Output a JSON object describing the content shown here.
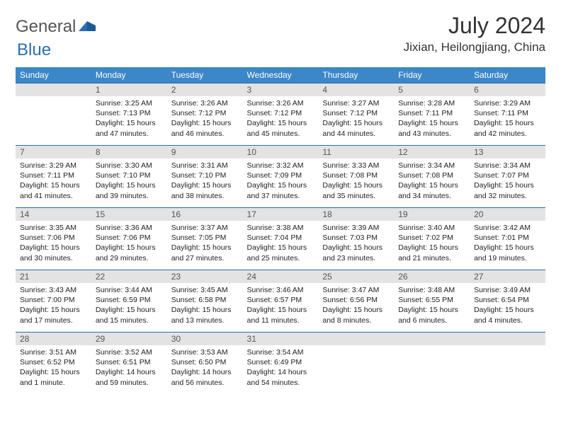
{
  "logo": {
    "general": "General",
    "blue": "Blue"
  },
  "title": "July 2024",
  "location": "Jixian, Heilongjiang, China",
  "colors": {
    "header_bg": "#3b87c8",
    "border": "#2a6db5",
    "daynum_bg": "#e3e3e3",
    "logo_blue": "#2a6db5"
  },
  "weekdays": [
    "Sunday",
    "Monday",
    "Tuesday",
    "Wednesday",
    "Thursday",
    "Friday",
    "Saturday"
  ],
  "weeks": [
    [
      null,
      {
        "n": "1",
        "sr": "3:25 AM",
        "ss": "7:13 PM",
        "dl": "15 hours and 47 minutes."
      },
      {
        "n": "2",
        "sr": "3:26 AM",
        "ss": "7:12 PM",
        "dl": "15 hours and 46 minutes."
      },
      {
        "n": "3",
        "sr": "3:26 AM",
        "ss": "7:12 PM",
        "dl": "15 hours and 45 minutes."
      },
      {
        "n": "4",
        "sr": "3:27 AM",
        "ss": "7:12 PM",
        "dl": "15 hours and 44 minutes."
      },
      {
        "n": "5",
        "sr": "3:28 AM",
        "ss": "7:11 PM",
        "dl": "15 hours and 43 minutes."
      },
      {
        "n": "6",
        "sr": "3:29 AM",
        "ss": "7:11 PM",
        "dl": "15 hours and 42 minutes."
      }
    ],
    [
      {
        "n": "7",
        "sr": "3:29 AM",
        "ss": "7:11 PM",
        "dl": "15 hours and 41 minutes."
      },
      {
        "n": "8",
        "sr": "3:30 AM",
        "ss": "7:10 PM",
        "dl": "15 hours and 39 minutes."
      },
      {
        "n": "9",
        "sr": "3:31 AM",
        "ss": "7:10 PM",
        "dl": "15 hours and 38 minutes."
      },
      {
        "n": "10",
        "sr": "3:32 AM",
        "ss": "7:09 PM",
        "dl": "15 hours and 37 minutes."
      },
      {
        "n": "11",
        "sr": "3:33 AM",
        "ss": "7:08 PM",
        "dl": "15 hours and 35 minutes."
      },
      {
        "n": "12",
        "sr": "3:34 AM",
        "ss": "7:08 PM",
        "dl": "15 hours and 34 minutes."
      },
      {
        "n": "13",
        "sr": "3:34 AM",
        "ss": "7:07 PM",
        "dl": "15 hours and 32 minutes."
      }
    ],
    [
      {
        "n": "14",
        "sr": "3:35 AM",
        "ss": "7:06 PM",
        "dl": "15 hours and 30 minutes."
      },
      {
        "n": "15",
        "sr": "3:36 AM",
        "ss": "7:06 PM",
        "dl": "15 hours and 29 minutes."
      },
      {
        "n": "16",
        "sr": "3:37 AM",
        "ss": "7:05 PM",
        "dl": "15 hours and 27 minutes."
      },
      {
        "n": "17",
        "sr": "3:38 AM",
        "ss": "7:04 PM",
        "dl": "15 hours and 25 minutes."
      },
      {
        "n": "18",
        "sr": "3:39 AM",
        "ss": "7:03 PM",
        "dl": "15 hours and 23 minutes."
      },
      {
        "n": "19",
        "sr": "3:40 AM",
        "ss": "7:02 PM",
        "dl": "15 hours and 21 minutes."
      },
      {
        "n": "20",
        "sr": "3:42 AM",
        "ss": "7:01 PM",
        "dl": "15 hours and 19 minutes."
      }
    ],
    [
      {
        "n": "21",
        "sr": "3:43 AM",
        "ss": "7:00 PM",
        "dl": "15 hours and 17 minutes."
      },
      {
        "n": "22",
        "sr": "3:44 AM",
        "ss": "6:59 PM",
        "dl": "15 hours and 15 minutes."
      },
      {
        "n": "23",
        "sr": "3:45 AM",
        "ss": "6:58 PM",
        "dl": "15 hours and 13 minutes."
      },
      {
        "n": "24",
        "sr": "3:46 AM",
        "ss": "6:57 PM",
        "dl": "15 hours and 11 minutes."
      },
      {
        "n": "25",
        "sr": "3:47 AM",
        "ss": "6:56 PM",
        "dl": "15 hours and 8 minutes."
      },
      {
        "n": "26",
        "sr": "3:48 AM",
        "ss": "6:55 PM",
        "dl": "15 hours and 6 minutes."
      },
      {
        "n": "27",
        "sr": "3:49 AM",
        "ss": "6:54 PM",
        "dl": "15 hours and 4 minutes."
      }
    ],
    [
      {
        "n": "28",
        "sr": "3:51 AM",
        "ss": "6:52 PM",
        "dl": "15 hours and 1 minute."
      },
      {
        "n": "29",
        "sr": "3:52 AM",
        "ss": "6:51 PM",
        "dl": "14 hours and 59 minutes."
      },
      {
        "n": "30",
        "sr": "3:53 AM",
        "ss": "6:50 PM",
        "dl": "14 hours and 56 minutes."
      },
      {
        "n": "31",
        "sr": "3:54 AM",
        "ss": "6:49 PM",
        "dl": "14 hours and 54 minutes."
      },
      null,
      null,
      null
    ]
  ],
  "labels": {
    "sunrise": "Sunrise:",
    "sunset": "Sunset:",
    "daylight": "Daylight:"
  }
}
